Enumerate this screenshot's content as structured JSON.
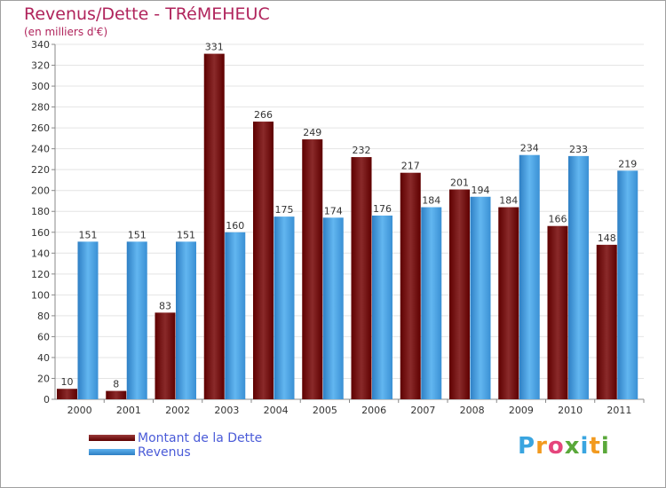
{
  "header": {
    "title": "Revenus/Dette - TRéMEHEUC",
    "subtitle": "(en milliers d'€)"
  },
  "legend": {
    "debt_label": "Montant de la Dette",
    "revenue_label": "Revenus"
  },
  "logo": {
    "text": "Proxiti",
    "letters": [
      "P",
      "r",
      "o",
      "x",
      "i",
      "t",
      "i"
    ],
    "colors": [
      "#3aa5e0",
      "#f29a1f",
      "#e5457c",
      "#5aa83a",
      "#3aa5e0",
      "#f29a1f",
      "#5aa83a"
    ]
  },
  "colors": {
    "debt_dark": "#5e0000",
    "debt_light": "#9a3a3a",
    "revenue_dark": "#2e7fc4",
    "revenue_light": "#5eb2ee",
    "title": "#b0245c",
    "legend_text": "#4a5bd8"
  },
  "chart_data": {
    "type": "bar",
    "title": "Revenus/Dette - TRéMEHEUC",
    "ylabel": "(en milliers d'€)",
    "xlabel": "",
    "categories": [
      "2000",
      "2001",
      "2002",
      "2003",
      "2004",
      "2005",
      "2006",
      "2007",
      "2008",
      "2009",
      "2010",
      "2011"
    ],
    "series": [
      {
        "name": "Montant de la Dette",
        "values": [
          10,
          8,
          83,
          331,
          266,
          249,
          232,
          217,
          201,
          184,
          166,
          148
        ]
      },
      {
        "name": "Revenus",
        "values": [
          151,
          151,
          151,
          160,
          175,
          174,
          176,
          184,
          194,
          234,
          233,
          219
        ]
      }
    ],
    "ylim": [
      0,
      340
    ],
    "ytick_step": 20,
    "grid": true,
    "legend_position": "bottom-left"
  }
}
